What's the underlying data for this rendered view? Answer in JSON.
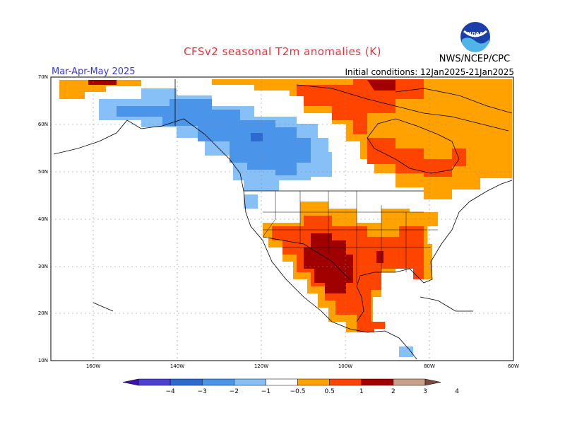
{
  "header": {
    "title": "CFSv2 seasonal T2m anomalies (K)",
    "period": "Mar-Apr-May 2025",
    "initial_conditions": "Initial conditions: 12Jan2025-21Jan2025",
    "agency": "NWS/NCEP/CPC",
    "logo_text": "NOAA"
  },
  "map": {
    "lat_labels": [
      "70N",
      "60N",
      "50N",
      "40N",
      "30N",
      "20N",
      "10N"
    ],
    "lon_labels": [
      "160W",
      "140W",
      "120W",
      "100W",
      "80W",
      "60W"
    ],
    "regions": [
      {
        "name": "alaska-yukon",
        "anomaly": "−1 to −0.5"
      },
      {
        "name": "western-canada",
        "anomaly": "−2 to −1"
      },
      {
        "name": "northern-canada",
        "anomaly": "0.5 to 1"
      },
      {
        "name": "hudson-bay",
        "anomaly": "1 to 2"
      },
      {
        "name": "southern-plains",
        "anomaly": "2 to 3"
      },
      {
        "name": "southeast-us",
        "anomaly": "1 to 2"
      },
      {
        "name": "mexico",
        "anomaly": "1 to 2"
      }
    ]
  },
  "colorbar": {
    "labels": [
      "−4",
      "−3",
      "−2",
      "−1",
      "−0.5",
      "0.5",
      "1",
      "2",
      "3",
      "4"
    ],
    "colors": [
      "#3b13b0",
      "#4a3fcf",
      "#2d6ad0",
      "#4a95ea",
      "#86c0f7",
      "#ffffff",
      "#ffa200",
      "#ff4400",
      "#a10000",
      "#c9a08c",
      "#7b4a3c"
    ]
  },
  "colors": {
    "neg_light": "#86c0f7",
    "neg_mid": "#4a95ea",
    "neg_dark": "#2d6ad0",
    "pos_light": "#ffa200",
    "pos_mid": "#ff4400",
    "pos_dark": "#a10000",
    "title": "#e8323c",
    "period": "#3a3ad4"
  }
}
